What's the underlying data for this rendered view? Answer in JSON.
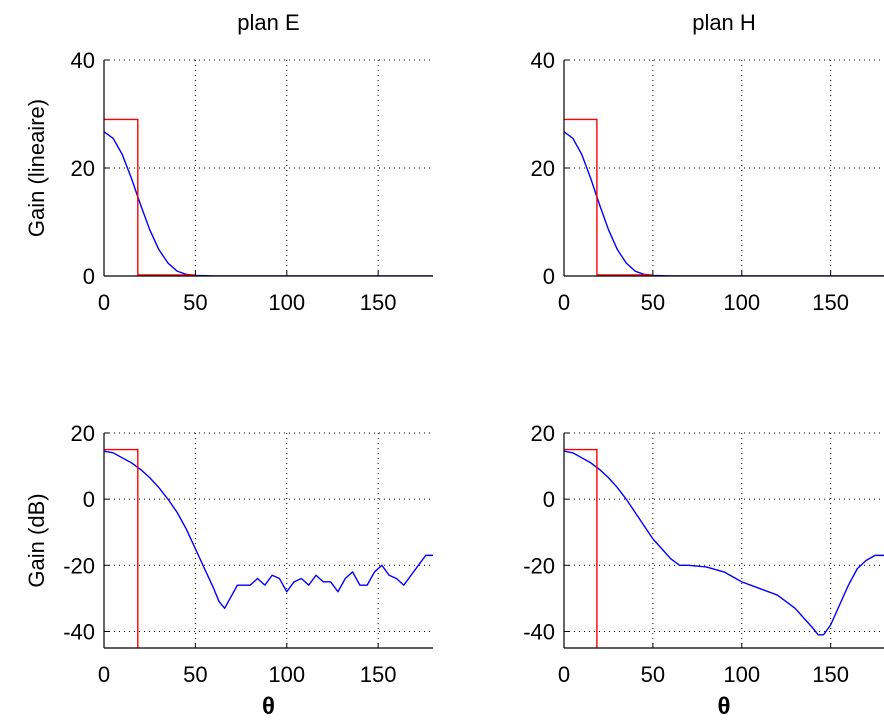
{
  "colors": {
    "series_blue": "#0000ff",
    "series_red": "#ff0000",
    "axis": "#000000"
  },
  "chart_data": [
    {
      "type": "line",
      "title": "plan E",
      "xlabel": "",
      "ylabel": "Gain (lineaire)",
      "xlim": [
        0,
        180
      ],
      "ylim": [
        0,
        40
      ],
      "xticks": [
        0,
        50,
        100,
        150
      ],
      "yticks": [
        0,
        20,
        40
      ],
      "grid": true,
      "series": [
        {
          "color": "#0000ff",
          "x": [
            0,
            5,
            10,
            15,
            20,
            25,
            30,
            35,
            40,
            45,
            50,
            60,
            80,
            100,
            120,
            150,
            180
          ],
          "y": [
            26.7,
            25.5,
            22.5,
            18.1,
            13.2,
            8.6,
            4.9,
            2.4,
            0.9,
            0.3,
            0.1,
            0.02,
            0.01,
            0.01,
            0.01,
            0.01,
            0.01
          ]
        },
        {
          "color": "#ff0000",
          "x": [
            0,
            18.5,
            18.5,
            50
          ],
          "y": [
            29,
            29,
            0.2,
            0.2
          ]
        }
      ]
    },
    {
      "type": "line",
      "title": "plan H",
      "xlabel": "",
      "ylabel": "",
      "xlim": [
        0,
        180
      ],
      "ylim": [
        0,
        40
      ],
      "xticks": [
        0,
        50,
        100,
        150
      ],
      "yticks": [
        0,
        20,
        40
      ],
      "grid": true,
      "series": [
        {
          "color": "#0000ff",
          "x": [
            0,
            5,
            10,
            15,
            20,
            25,
            30,
            35,
            40,
            45,
            50,
            60,
            80,
            100,
            120,
            150,
            180
          ],
          "y": [
            26.7,
            25.5,
            22.5,
            18.1,
            13.2,
            8.6,
            4.9,
            2.4,
            0.9,
            0.3,
            0.1,
            0.02,
            0.01,
            0.01,
            0.01,
            0.01,
            0.01
          ]
        },
        {
          "color": "#ff0000",
          "x": [
            0,
            18.5,
            18.5,
            50
          ],
          "y": [
            29,
            29,
            0.2,
            0.2
          ]
        }
      ]
    },
    {
      "type": "line",
      "title": "",
      "xlabel": "θ",
      "ylabel": "Gain (dB)",
      "xlim": [
        0,
        180
      ],
      "ylim": [
        -45,
        20
      ],
      "xticks": [
        0,
        50,
        100,
        150
      ],
      "yticks": [
        -40,
        -20,
        0,
        20
      ],
      "grid": true,
      "series": [
        {
          "color": "#0000ff",
          "x": [
            0,
            5,
            10,
            15,
            20,
            25,
            30,
            35,
            40,
            45,
            50,
            55,
            60,
            63,
            66,
            68,
            70,
            73,
            76,
            80,
            84,
            88,
            92,
            96,
            100,
            104,
            108,
            112,
            116,
            120,
            124,
            128,
            132,
            136,
            140,
            144,
            148,
            152,
            156,
            160,
            164,
            168,
            172,
            176,
            180
          ],
          "y": [
            14.5,
            14,
            12.5,
            11,
            9,
            6.5,
            3.5,
            0,
            -4,
            -9,
            -15,
            -21,
            -27,
            -31,
            -33,
            -31,
            -29,
            -26,
            -26,
            -26,
            -24,
            -26,
            -23,
            -24,
            -28,
            -25,
            -24,
            -26,
            -23,
            -25,
            -25,
            -28,
            -24,
            -22,
            -26,
            -26,
            -22,
            -20,
            -23,
            -24,
            -26,
            -23,
            -20,
            -17,
            -17
          ]
        },
        {
          "color": "#ff0000",
          "x": [
            0,
            18.5,
            18.5
          ],
          "y": [
            15,
            15,
            -45
          ]
        }
      ]
    },
    {
      "type": "line",
      "title": "",
      "xlabel": "θ",
      "ylabel": "",
      "xlim": [
        0,
        180
      ],
      "ylim": [
        -45,
        20
      ],
      "xticks": [
        0,
        50,
        100,
        150
      ],
      "yticks": [
        -40,
        -20,
        0,
        20
      ],
      "grid": true,
      "series": [
        {
          "color": "#0000ff",
          "x": [
            0,
            5,
            10,
            15,
            20,
            25,
            30,
            35,
            40,
            45,
            50,
            55,
            60,
            65,
            70,
            80,
            90,
            100,
            110,
            120,
            130,
            135,
            140,
            143,
            146,
            150,
            155,
            160,
            165,
            170,
            175,
            180
          ],
          "y": [
            14.5,
            14,
            12.5,
            11,
            9,
            6.5,
            3.5,
            0,
            -4,
            -8,
            -12,
            -15,
            -18,
            -20,
            -20,
            -20.5,
            -22,
            -25,
            -27,
            -29,
            -33,
            -36,
            -39,
            -41,
            -41,
            -38,
            -32,
            -26,
            -21,
            -18.5,
            -17,
            -17
          ]
        },
        {
          "color": "#ff0000",
          "x": [
            0,
            18.5,
            18.5
          ],
          "y": [
            15,
            15,
            -45
          ]
        }
      ]
    }
  ]
}
